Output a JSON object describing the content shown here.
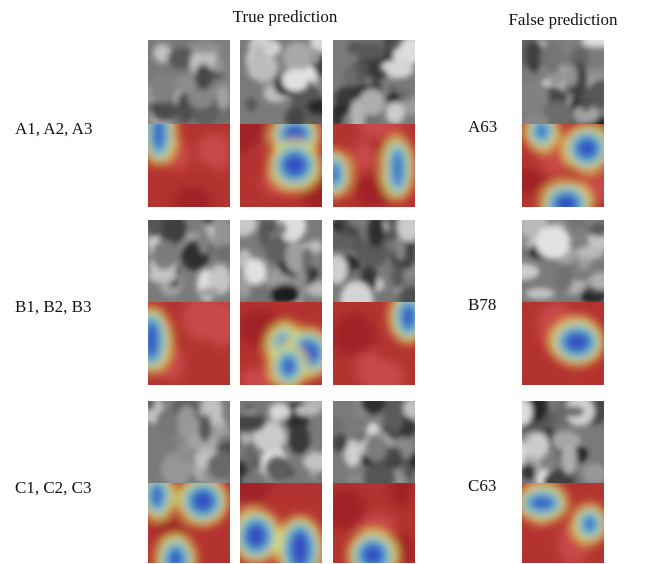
{
  "header": {
    "true_title": "True prediction",
    "false_title": "False prediction"
  },
  "rows": [
    {
      "true_label": "A1, A2, A3",
      "false_label": "A63"
    },
    {
      "true_label": "B1, B2, B3",
      "false_label": "B78"
    },
    {
      "true_label": "C1, C2, C3",
      "false_label": "C63"
    }
  ]
}
